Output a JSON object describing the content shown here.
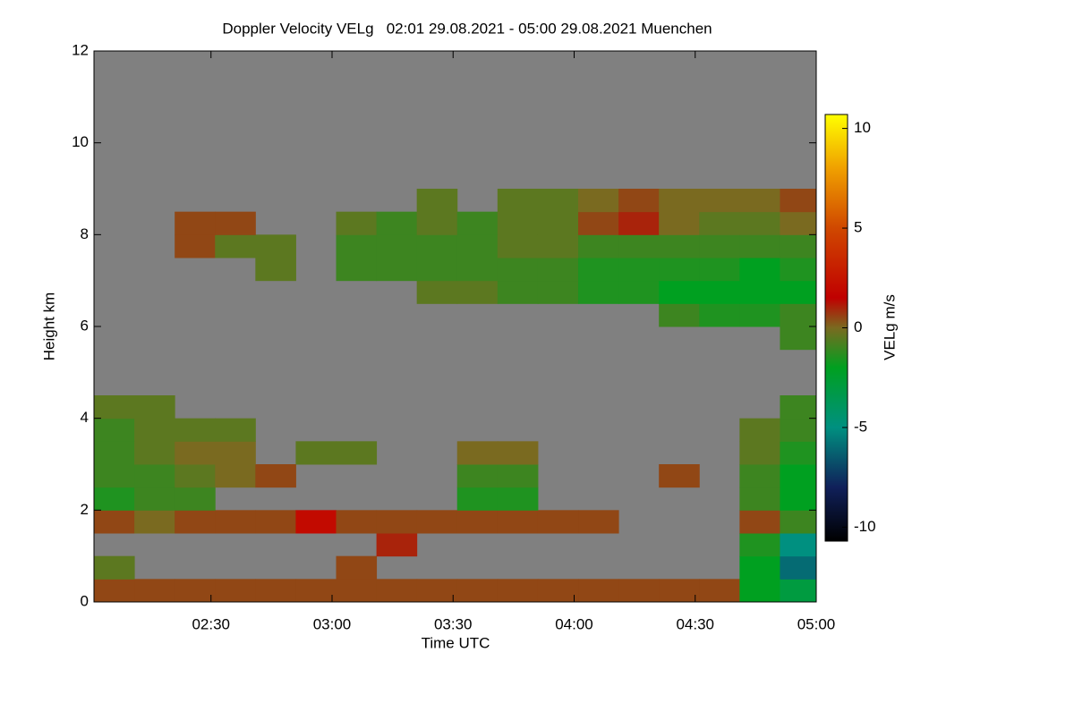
{
  "chart_data": {
    "type": "heatmap",
    "title": "Doppler Velocity VELg   02:01 29.08.2021 - 05:00 29.08.2021 Muenchen",
    "xlabel": "Time UTC",
    "ylabel": "Height km",
    "colorbar_label": "VELg m/s",
    "background_color": "#808080",
    "xlim": [
      121,
      300
    ],
    "xticks": [
      {
        "value": 150,
        "label": "02:30"
      },
      {
        "value": 180,
        "label": "03:00"
      },
      {
        "value": 210,
        "label": "03:30"
      },
      {
        "value": 240,
        "label": "04:00"
      },
      {
        "value": 270,
        "label": "04:30"
      },
      {
        "value": 300,
        "label": "05:00"
      }
    ],
    "ylim": [
      0,
      12
    ],
    "yticks": [
      0,
      2,
      4,
      6,
      8,
      10,
      12
    ],
    "zlim": [
      -10.7,
      10.7
    ],
    "colorbar_ticks": [
      10,
      5,
      0,
      -5,
      -10
    ],
    "colorscale": [
      [
        -10.7,
        "#000000"
      ],
      [
        -8,
        "#10205a"
      ],
      [
        -5,
        "#009080"
      ],
      [
        -2,
        "#00a020"
      ],
      [
        0,
        "#7a6a20"
      ],
      [
        1.5,
        "#c00000"
      ],
      [
        5,
        "#d04800"
      ],
      [
        8,
        "#f0a000"
      ],
      [
        10.7,
        "#ffff00"
      ]
    ],
    "x_edges": [
      121,
      131,
      141,
      151,
      161,
      171,
      181,
      191,
      201,
      211,
      221,
      231,
      241,
      251,
      261,
      271,
      281,
      291,
      300
    ],
    "y_edges": [
      0,
      0.5,
      1,
      1.5,
      2,
      2.5,
      3,
      3.5,
      4,
      4.5,
      5,
      5.5,
      6,
      6.5,
      7,
      7.5,
      8,
      8.5,
      9,
      9.5,
      10,
      10.5,
      11,
      11.5,
      12
    ],
    "z": [
      [
        0.5,
        0.5,
        0.5,
        0.5,
        0.5,
        0.5,
        0.5,
        0.5,
        0.5,
        0.5,
        0.5,
        0.5,
        0.5,
        0.5,
        0.5,
        0.5,
        -2,
        -3
      ],
      [
        -0.5,
        null,
        null,
        null,
        null,
        null,
        0.5,
        null,
        null,
        null,
        null,
        null,
        null,
        null,
        null,
        null,
        -2,
        -6
      ],
      [
        null,
        null,
        null,
        null,
        null,
        null,
        null,
        1,
        null,
        null,
        null,
        null,
        null,
        null,
        null,
        null,
        -1.5,
        -5
      ],
      [
        0.5,
        0,
        0.5,
        0.5,
        0.5,
        2,
        0.5,
        0.5,
        0.5,
        0.5,
        0.5,
        0.5,
        0.5,
        null,
        null,
        null,
        0.5,
        -1
      ],
      [
        -1.5,
        -1,
        -1,
        null,
        null,
        null,
        null,
        null,
        null,
        -1.5,
        -1.5,
        null,
        null,
        null,
        null,
        null,
        -1,
        -2
      ],
      [
        -1,
        -1,
        -0.5,
        0,
        0.5,
        null,
        null,
        null,
        null,
        -1,
        -1,
        null,
        null,
        null,
        0.5,
        null,
        -1,
        -2
      ],
      [
        -1,
        -0.5,
        0,
        0,
        null,
        -0.5,
        -0.5,
        null,
        null,
        0,
        0,
        null,
        null,
        null,
        null,
        null,
        -0.5,
        -1.5
      ],
      [
        -1,
        -0.5,
        -0.5,
        -0.5,
        null,
        null,
        null,
        null,
        null,
        null,
        null,
        null,
        null,
        null,
        null,
        null,
        -0.5,
        -1
      ],
      [
        -0.5,
        -0.5,
        null,
        null,
        null,
        null,
        null,
        null,
        null,
        null,
        null,
        null,
        null,
        null,
        null,
        null,
        null,
        -1
      ],
      [
        null,
        null,
        null,
        null,
        null,
        null,
        null,
        null,
        null,
        null,
        null,
        null,
        null,
        null,
        null,
        null,
        null,
        null
      ],
      [
        null,
        null,
        null,
        null,
        null,
        null,
        null,
        null,
        null,
        null,
        null,
        null,
        null,
        null,
        null,
        null,
        null,
        null
      ],
      [
        null,
        null,
        null,
        null,
        null,
        null,
        null,
        null,
        null,
        null,
        null,
        null,
        null,
        null,
        null,
        null,
        null,
        -1
      ],
      [
        null,
        null,
        null,
        null,
        null,
        null,
        null,
        null,
        null,
        null,
        null,
        null,
        null,
        null,
        -1,
        -1.5,
        -1.5,
        -1
      ],
      [
        null,
        null,
        null,
        null,
        null,
        null,
        null,
        null,
        -0.5,
        -0.5,
        -1,
        -1,
        -1.5,
        -1.5,
        -2,
        -2,
        -2,
        -2
      ],
      [
        null,
        null,
        null,
        null,
        -0.5,
        null,
        -1,
        -1,
        -1,
        -1,
        -1,
        -1,
        -1.5,
        -1.5,
        -1.5,
        -1.5,
        -2,
        -1.5
      ],
      [
        null,
        null,
        0.5,
        -0.5,
        -0.5,
        null,
        -1,
        -1,
        -1,
        -1,
        -0.5,
        -0.5,
        -1,
        -1,
        -1,
        -1,
        -1,
        -1
      ],
      [
        null,
        null,
        0.5,
        0.5,
        null,
        null,
        -0.5,
        -1,
        -0.5,
        -1,
        -0.5,
        -0.5,
        0.5,
        1,
        0,
        -0.5,
        -0.5,
        0
      ],
      [
        null,
        null,
        null,
        null,
        null,
        null,
        null,
        null,
        -0.5,
        null,
        -0.5,
        -0.5,
        0,
        0.5,
        0,
        0,
        0,
        0.5
      ],
      [
        null,
        null,
        null,
        null,
        null,
        null,
        null,
        null,
        null,
        null,
        null,
        null,
        null,
        null,
        null,
        null,
        null,
        null
      ],
      [
        null,
        null,
        null,
        null,
        null,
        null,
        null,
        null,
        null,
        null,
        null,
        null,
        null,
        null,
        null,
        null,
        null,
        null
      ],
      [
        null,
        null,
        null,
        null,
        null,
        null,
        null,
        null,
        null,
        null,
        null,
        null,
        null,
        null,
        null,
        null,
        null,
        null
      ],
      [
        null,
        null,
        null,
        null,
        null,
        null,
        null,
        null,
        null,
        null,
        null,
        null,
        null,
        null,
        null,
        null,
        null,
        null
      ],
      [
        null,
        null,
        null,
        null,
        null,
        null,
        null,
        null,
        null,
        null,
        null,
        null,
        null,
        null,
        null,
        null,
        null,
        null
      ],
      [
        null,
        null,
        null,
        null,
        null,
        null,
        null,
        null,
        null,
        null,
        null,
        null,
        null,
        null,
        null,
        null,
        null,
        null
      ]
    ]
  }
}
